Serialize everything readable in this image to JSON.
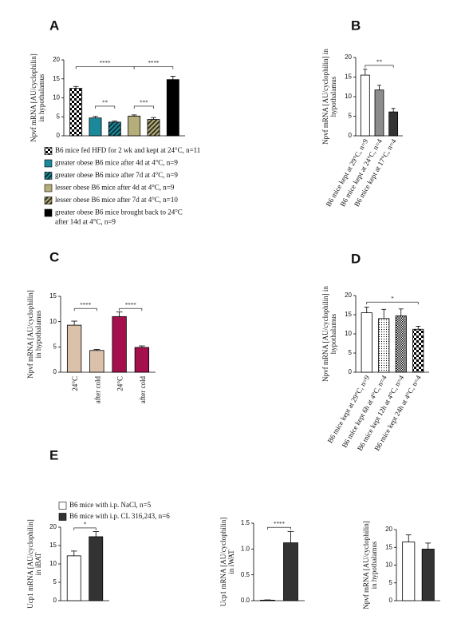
{
  "chart_data": [
    {
      "type": "bar",
      "panel": "A",
      "ylabel": [
        "Npvf mRNA [AU/cyclophilin]",
        "in hypothalamus"
      ],
      "ylim": [
        0,
        20
      ],
      "yticks": [
        0,
        5,
        10,
        15,
        20
      ],
      "values": [
        12.5,
        4.7,
        3.6,
        5.2,
        4.3,
        14.8
      ],
      "errors": [
        0.5,
        0.4,
        0.3,
        0.3,
        0.5,
        0.9
      ],
      "fills": [
        "checker",
        "#1a8a9a",
        "hatch-teal",
        "#b5ad7a",
        "hatch-khaki",
        "#000000"
      ],
      "legend": [
        {
          "name": [
            "B6 mice fed HFD for 2 wk and kept at 24°C, n=11"
          ],
          "fill": "checker"
        },
        {
          "name": [
            "greater obese B6 mice after 4d at 4°C, n=9"
          ],
          "fill": "#1a8a9a"
        },
        {
          "name": [
            "greater obese B6 mice after 7d at 4°C, n=9"
          ],
          "fill": "hatch-teal"
        },
        {
          "name": [
            "lesser obese B6 mice after 4d at 4°C, n=9"
          ],
          "fill": "#b5ad7a"
        },
        {
          "name": [
            "lesser obese B6 mice after 7d at 4°C, n=10"
          ],
          "fill": "hatch-khaki"
        },
        {
          "name": [
            "greater obese B6 mice brought back to 24°C",
            "after 14d at 4°C, n=9"
          ],
          "fill": "#000000"
        }
      ],
      "brackets": [
        {
          "label": "****",
          "from": 0,
          "to": 3,
          "y": 18.2
        },
        {
          "label": "****",
          "from": 3,
          "to": 5,
          "y": 18.2
        },
        {
          "label": "**",
          "from": 1,
          "to": 2,
          "y": 7.8
        },
        {
          "label": "***",
          "from": 3,
          "to": 4,
          "y": 7.8
        }
      ]
    },
    {
      "type": "bar",
      "panel": "B",
      "ylabel": [
        "Npvf mRNA [AU/cyclophilin] in",
        "hypothalamus"
      ],
      "ylim": [
        0,
        20
      ],
      "yticks": [
        0,
        5,
        10,
        15,
        20
      ],
      "categories": [
        "B6 mice kept at 29°C, n=9",
        "B6 mice kept at 24°C, n=4",
        "B6 mice kept at 17°C, n=4"
      ],
      "values": [
        15.5,
        11.7,
        6.1
      ],
      "errors": [
        1.5,
        1.2,
        0.9
      ],
      "fills": [
        "#ffffff",
        "#8c8c8c",
        "#333333"
      ],
      "brackets": [
        {
          "label": "**",
          "from": 0,
          "to": 2,
          "y": 18
        }
      ]
    },
    {
      "type": "bar",
      "panel": "C",
      "ylabel": [
        "Npvf mRNA [AU/cyclophilin]",
        "in hypothalamus"
      ],
      "ylim": [
        0,
        15
      ],
      "yticks": [
        0,
        5,
        10,
        15
      ],
      "categories": [
        "24°C",
        "after cold",
        "24°C",
        "after cold"
      ],
      "values": [
        9.3,
        4.3,
        11.0,
        4.9
      ],
      "errors": [
        0.8,
        0.2,
        0.9,
        0.3
      ],
      "fills": [
        "#dcc1aa",
        "#dcc1aa",
        "#a3104c",
        "#a3104c"
      ],
      "brackets": [
        {
          "label": "****",
          "from": 0,
          "to": 1,
          "y": 12.6
        },
        {
          "label": "****",
          "from": 2,
          "to": 3,
          "y": 12.6
        }
      ]
    },
    {
      "type": "bar",
      "panel": "D",
      "ylabel": [
        "Npvf mRNA [AU/cyclophilin] in",
        "hypothalamus"
      ],
      "ylim": [
        0,
        20
      ],
      "yticks": [
        0,
        5,
        10,
        15,
        20
      ],
      "categories": [
        "B6 mice kept at 29°C, n=9",
        "B6 mice kept 6h at 4°C, n=4",
        "B6 mice kept 12h at 4°C, n=4",
        "B6 mice kept 24h at 4°C, n=4"
      ],
      "values": [
        15.5,
        14.0,
        14.7,
        11.2
      ],
      "errors": [
        1.5,
        2.4,
        1.8,
        0.8
      ],
      "fills": [
        "#ffffff",
        "dots",
        "checker-fine",
        "checker"
      ],
      "brackets": [
        {
          "label": "*",
          "from": 0,
          "to": 3,
          "y": 18.3
        }
      ]
    },
    {
      "type": "bar",
      "panel": "E",
      "ylabel": [
        "Ucp1 mRNA [AU/cyclophilin]",
        "in iBAT"
      ],
      "ylim": [
        0,
        20
      ],
      "yticks": [
        0,
        5,
        10,
        15,
        20
      ],
      "values": [
        12.2,
        17.4
      ],
      "errors": [
        1.3,
        1.4
      ],
      "fills": [
        "#ffffff",
        "#333333"
      ],
      "legend": [
        {
          "name": [
            "B6 mice with i.p. NaCl, n=5"
          ],
          "fill": "#ffffff"
        },
        {
          "name": [
            "B6 mice with i.p. CL 316,243, n=6"
          ],
          "fill": "#333333"
        }
      ],
      "brackets": [
        {
          "label": "*",
          "from": 0,
          "to": 1,
          "y": 19.8
        }
      ]
    },
    {
      "type": "bar",
      "ylabel": [
        "Ucp1 mRNA [AU/cyclophilin]",
        "in iWAT"
      ],
      "ylim": [
        0,
        1.5
      ],
      "yticks": [
        {
          "value": 0,
          "label": "0.0"
        },
        {
          "value": 0.5,
          "label": "0.5"
        },
        {
          "value": 1,
          "label": "1.0"
        },
        {
          "value": 1.5,
          "label": "1.5"
        }
      ],
      "values": [
        0.01,
        1.12
      ],
      "errors": [
        0.005,
        0.22
      ],
      "fills": [
        "#ffffff",
        "#333333"
      ],
      "brackets": [
        {
          "label": "****",
          "from": 0,
          "to": 1,
          "y": 1.42
        }
      ]
    },
    {
      "type": "bar",
      "ylabel": [
        "Npvf mRNA [AU/cyclophilin]",
        "in hypothalamus"
      ],
      "ylim": [
        0,
        20
      ],
      "yticks": [
        0,
        5,
        10,
        15,
        20
      ],
      "values": [
        16.5,
        14.5
      ],
      "errors": [
        2.0,
        1.7
      ],
      "fills": [
        "#ffffff",
        "#333333"
      ]
    }
  ]
}
